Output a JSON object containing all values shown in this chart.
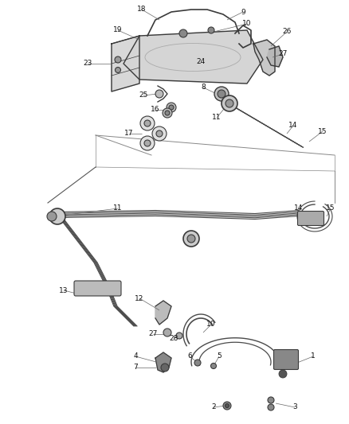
{
  "background": "#ffffff",
  "line_color": "#3a3a3a",
  "gray_fill": "#d0d0d0",
  "dark_fill": "#555555",
  "figsize": [
    4.38,
    5.33
  ],
  "dpi": 100,
  "label_fs": 6.5,
  "leader_color": "#666666",
  "leader_lw": 0.5,
  "tube_lw": 1.1,
  "tube_color": "#4a4a4a"
}
